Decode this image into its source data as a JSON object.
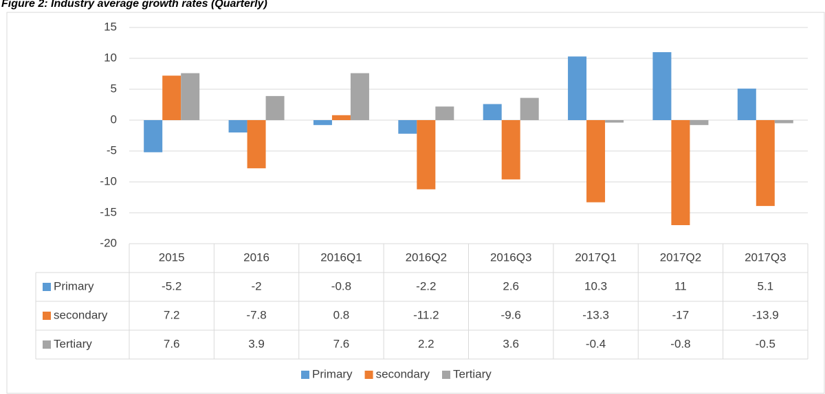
{
  "chart_data": {
    "type": "bar",
    "title": "Figure 2: Industry average growth rates (Quarterly)",
    "categories": [
      "2015",
      "2016",
      "2016Q1",
      "2016Q2",
      "2016Q3",
      "2017Q1",
      "2017Q2",
      "2017Q3"
    ],
    "series": [
      {
        "name": "Primary",
        "color": "#5b9bd5",
        "values": [
          -5.2,
          -2,
          -0.8,
          -2.2,
          2.6,
          10.3,
          11,
          5.1
        ]
      },
      {
        "name": "secondary",
        "color": "#ed7d31",
        "values": [
          7.2,
          -7.8,
          0.8,
          -11.2,
          -9.6,
          -13.3,
          -17,
          -13.9
        ]
      },
      {
        "name": "Tertiary",
        "color": "#a5a5a5",
        "values": [
          7.6,
          3.9,
          7.6,
          2.2,
          3.6,
          -0.4,
          -0.8,
          -0.5
        ]
      }
    ],
    "ylim": [
      -20,
      15
    ],
    "yticks": [
      -20,
      -15,
      -10,
      -5,
      0,
      5,
      10,
      15
    ],
    "grid": true,
    "data_table": true,
    "legend": "bottom"
  }
}
